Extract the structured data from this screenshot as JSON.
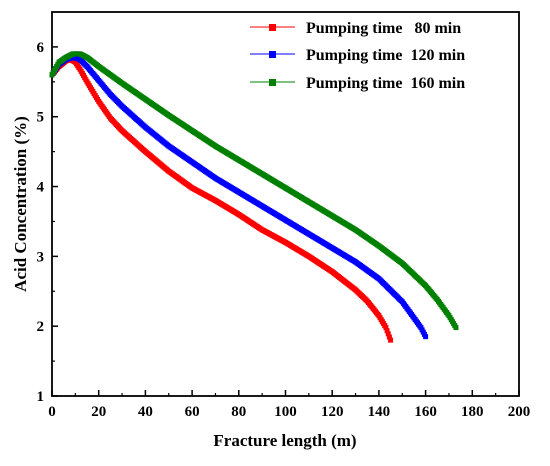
{
  "chart_data": {
    "type": "scatter",
    "title": "",
    "xlabel": "Fracture length (m)",
    "ylabel": "Acid Concentration (%)",
    "xlim": [
      0,
      200
    ],
    "ylim": [
      1,
      6.5
    ],
    "xticks": [
      "0",
      "20",
      "40",
      "60",
      "80",
      "100",
      "120",
      "140",
      "160",
      "180",
      "200"
    ],
    "yticks": [
      "1",
      "2",
      "3",
      "4",
      "5",
      "6"
    ],
    "grid": false,
    "legend_position": "top-right",
    "marker": "square",
    "series": [
      {
        "name": "Pumping time   80 min",
        "color": "#ff0000",
        "x": [
          0,
          3,
          6,
          8,
          10,
          12,
          15,
          20,
          25,
          30,
          40,
          50,
          60,
          70,
          80,
          90,
          100,
          110,
          120,
          130,
          135,
          140,
          143,
          145
        ],
        "y": [
          5.6,
          5.72,
          5.8,
          5.82,
          5.78,
          5.68,
          5.5,
          5.22,
          4.98,
          4.8,
          4.5,
          4.22,
          3.98,
          3.8,
          3.6,
          3.38,
          3.2,
          3.0,
          2.78,
          2.52,
          2.36,
          2.15,
          1.98,
          1.8
        ]
      },
      {
        "name": "Pumping time  120 min",
        "color": "#0000ff",
        "x": [
          0,
          3,
          6,
          9,
          12,
          15,
          20,
          25,
          30,
          40,
          50,
          60,
          70,
          80,
          90,
          100,
          110,
          120,
          130,
          140,
          150,
          155,
          158,
          160
        ],
        "y": [
          5.6,
          5.75,
          5.82,
          5.85,
          5.82,
          5.72,
          5.52,
          5.32,
          5.15,
          4.85,
          4.58,
          4.35,
          4.12,
          3.92,
          3.72,
          3.52,
          3.32,
          3.12,
          2.92,
          2.68,
          2.35,
          2.12,
          1.98,
          1.85
        ]
      },
      {
        "name": "Pumping time  160 min",
        "color": "#008000",
        "x": [
          0,
          3,
          6,
          9,
          12,
          15,
          20,
          30,
          40,
          50,
          60,
          70,
          80,
          90,
          100,
          110,
          120,
          130,
          140,
          150,
          160,
          165,
          170,
          173
        ],
        "y": [
          5.6,
          5.78,
          5.85,
          5.9,
          5.9,
          5.85,
          5.72,
          5.48,
          5.25,
          5.02,
          4.8,
          4.58,
          4.38,
          4.18,
          3.98,
          3.78,
          3.58,
          3.38,
          3.15,
          2.9,
          2.58,
          2.38,
          2.15,
          1.98
        ]
      }
    ]
  }
}
